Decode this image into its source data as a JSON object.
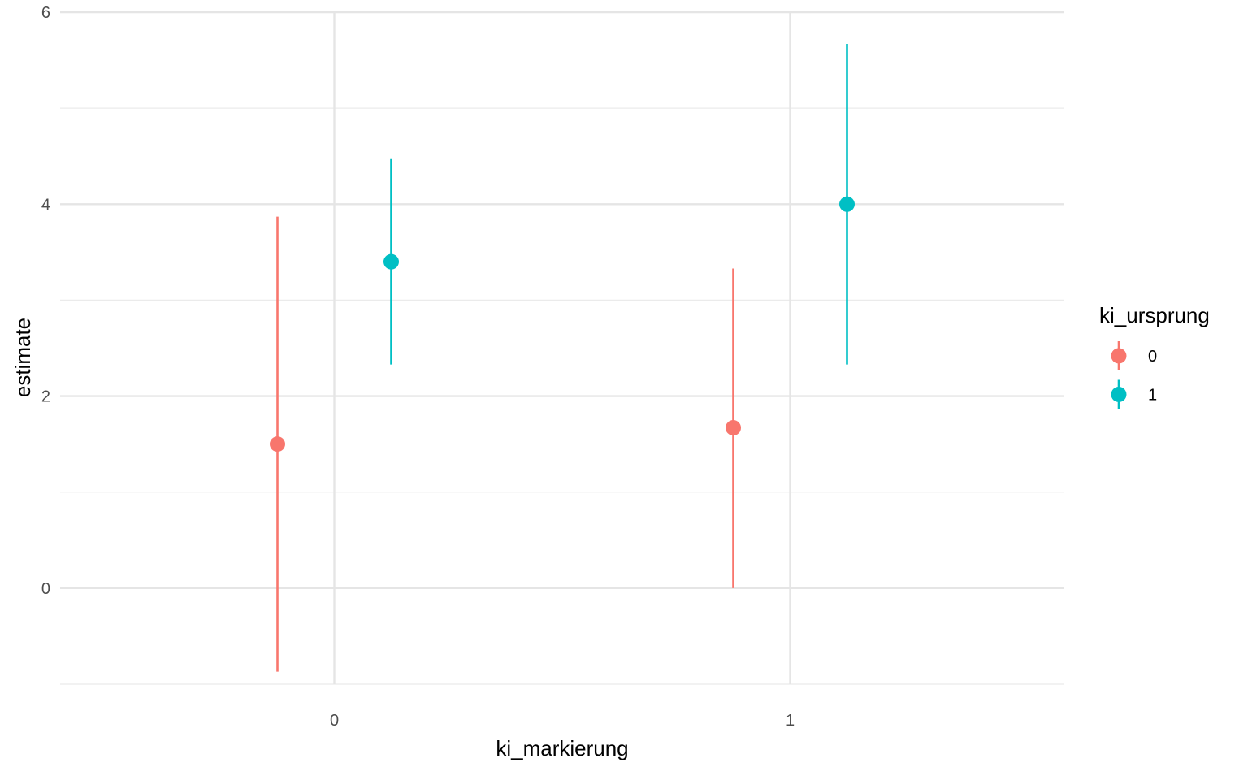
{
  "chart_data": {
    "type": "scatter",
    "subtype": "pointrange",
    "title": "",
    "xlabel": "ki_markierung",
    "ylabel": "estimate",
    "x_categories": [
      "0",
      "1"
    ],
    "ylim": [
      -1,
      6
    ],
    "y_ticks": [
      0,
      2,
      4,
      6
    ],
    "y_minor_ticks": [
      -1,
      1,
      3,
      5
    ],
    "grid": true,
    "legend": {
      "title": "ki_ursprung",
      "position": "right"
    },
    "series": [
      {
        "name": "0",
        "color": "#F8766D",
        "points": [
          {
            "x": "0",
            "estimate": 1.5,
            "low": -0.87,
            "high": 3.87
          },
          {
            "x": "1",
            "estimate": 1.67,
            "low": 0.0,
            "high": 3.33
          }
        ]
      },
      {
        "name": "1",
        "color": "#00BFC4",
        "points": [
          {
            "x": "0",
            "estimate": 3.4,
            "low": 2.33,
            "high": 4.47
          },
          {
            "x": "1",
            "estimate": 4.0,
            "low": 2.33,
            "high": 5.67
          }
        ]
      }
    ]
  }
}
